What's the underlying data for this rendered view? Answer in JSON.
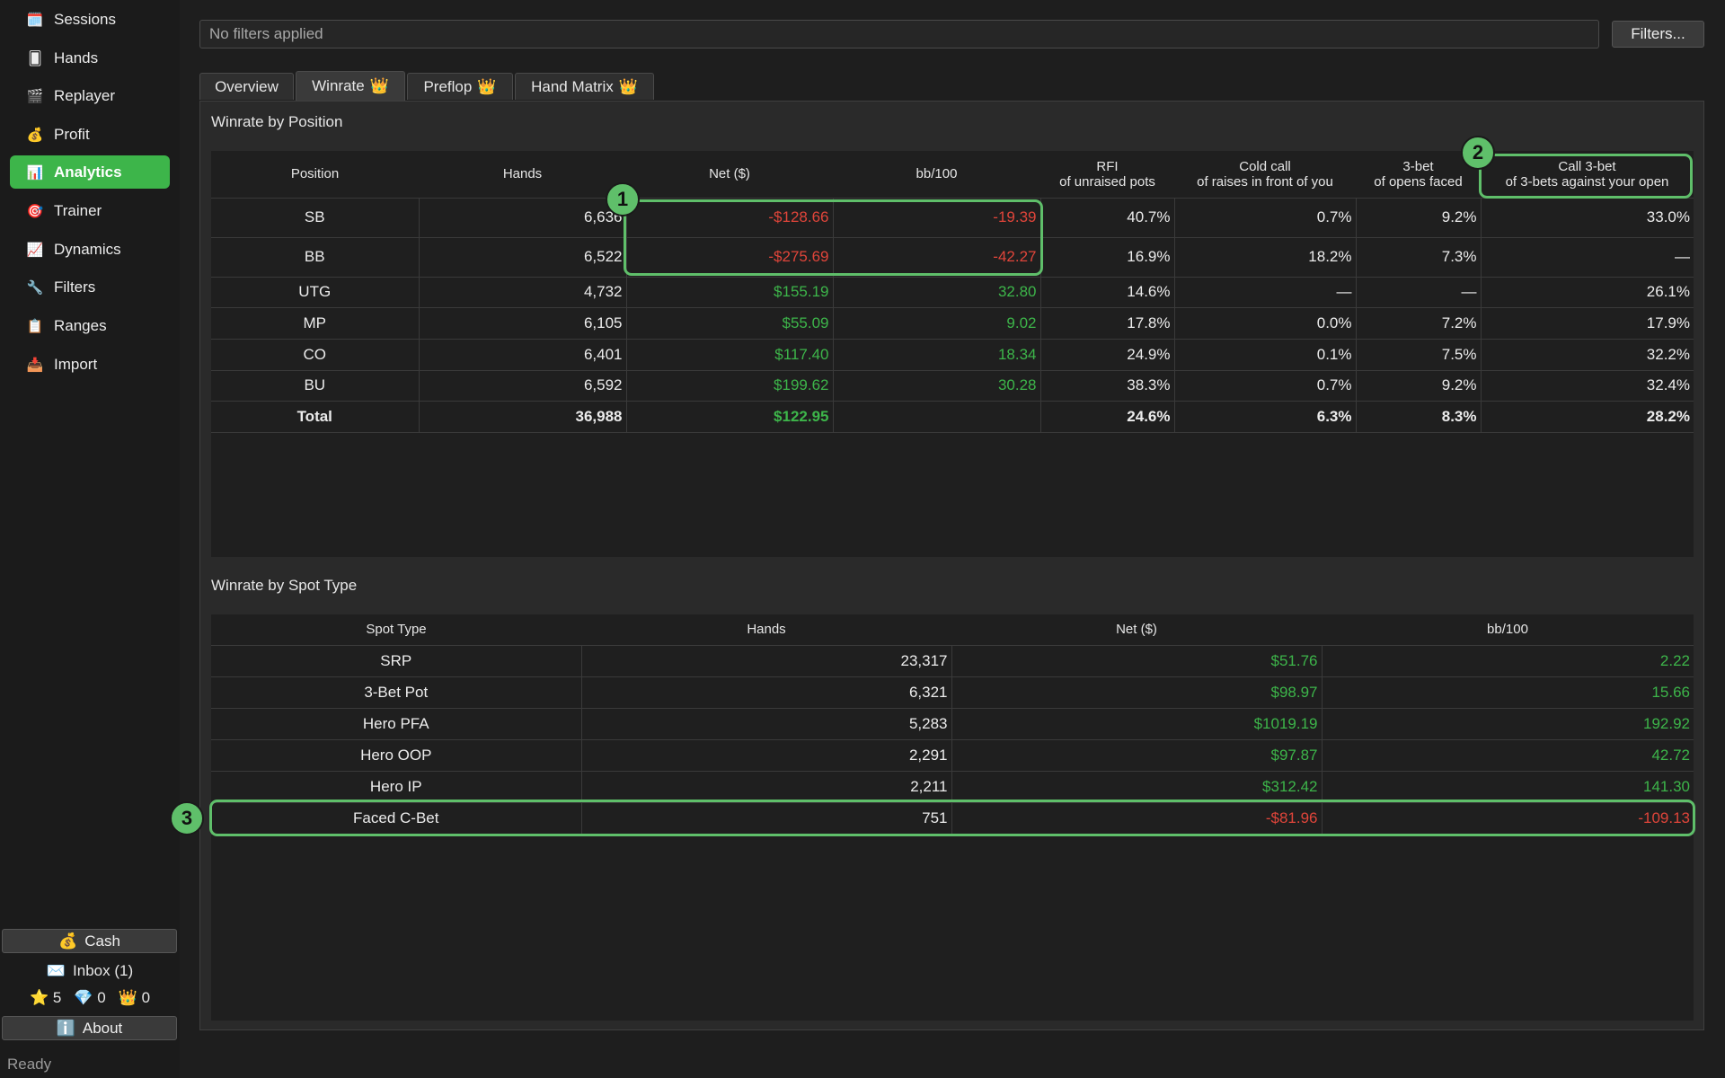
{
  "sidebar": {
    "items": [
      {
        "label": "Sessions",
        "icon": "🗓️",
        "active": false
      },
      {
        "label": "Hands",
        "icon": "🂠",
        "active": false
      },
      {
        "label": "Replayer",
        "icon": "🎬",
        "active": false
      },
      {
        "label": "Profit",
        "icon": "💰",
        "active": false
      },
      {
        "label": "Analytics",
        "icon": "📊",
        "active": true
      },
      {
        "label": "Trainer",
        "icon": "🎯",
        "active": false
      },
      {
        "label": "Dynamics",
        "icon": "📈",
        "active": false
      },
      {
        "label": "Filters",
        "icon": "🔧",
        "active": false
      },
      {
        "label": "Ranges",
        "icon": "📋",
        "active": false
      },
      {
        "label": "Import",
        "icon": "📥",
        "active": false
      }
    ],
    "cash_button": {
      "label": "Cash",
      "icon": "💰"
    },
    "inbox": {
      "label": "Inbox  (1)",
      "icon": "✉️"
    },
    "counters": [
      {
        "icon": "⭐",
        "value": "5"
      },
      {
        "icon": "💎",
        "value": "0"
      },
      {
        "icon": "👑",
        "value": "0"
      }
    ],
    "about_button": {
      "label": "About",
      "icon": "ℹ️"
    }
  },
  "status_bar": {
    "text": "Ready"
  },
  "filter_bar": {
    "text": "No filters applied",
    "button_label": "Filters..."
  },
  "tabs": [
    {
      "label": "Overview",
      "crown": "",
      "active": false
    },
    {
      "label": "Winrate",
      "crown": "👑",
      "active": true
    },
    {
      "label": "Preflop",
      "crown": "👑",
      "active": false
    },
    {
      "label": "Hand Matrix",
      "crown": "👑",
      "active": false
    }
  ],
  "winrate_by_position": {
    "title": "Winrate by Position",
    "headers": [
      {
        "line1": "Position",
        "line2": ""
      },
      {
        "line1": "Hands",
        "line2": ""
      },
      {
        "line1": "Net ($)",
        "line2": ""
      },
      {
        "line1": "bb/100",
        "line2": ""
      },
      {
        "line1": "RFI",
        "line2": "of unraised pots"
      },
      {
        "line1": "Cold call",
        "line2": "of raises in front of you"
      },
      {
        "line1": "3-bet",
        "line2": "of opens faced"
      },
      {
        "line1": "Call 3-bet",
        "line2": "of 3-bets against your open"
      }
    ],
    "rows": [
      {
        "position": "SB",
        "hands": "6,636",
        "net": "-$128.66",
        "bb100": "-19.39",
        "rfi": "40.7%",
        "cold_call": "0.7%",
        "three_bet": "9.2%",
        "call_3bet": "33.0%"
      },
      {
        "position": "BB",
        "hands": "6,522",
        "net": "-$275.69",
        "bb100": "-42.27",
        "rfi": "16.9%",
        "cold_call": "18.2%",
        "three_bet": "7.3%",
        "call_3bet": "—"
      },
      {
        "position": "UTG",
        "hands": "4,732",
        "net": "$155.19",
        "bb100": "32.80",
        "rfi": "14.6%",
        "cold_call": "—",
        "three_bet": "—",
        "call_3bet": "26.1%"
      },
      {
        "position": "MP",
        "hands": "6,105",
        "net": "$55.09",
        "bb100": "9.02",
        "rfi": "17.8%",
        "cold_call": "0.0%",
        "three_bet": "7.2%",
        "call_3bet": "17.9%"
      },
      {
        "position": "CO",
        "hands": "6,401",
        "net": "$117.40",
        "bb100": "18.34",
        "rfi": "24.9%",
        "cold_call": "0.1%",
        "three_bet": "7.5%",
        "call_3bet": "32.2%"
      },
      {
        "position": "BU",
        "hands": "6,592",
        "net": "$199.62",
        "bb100": "30.28",
        "rfi": "38.3%",
        "cold_call": "0.7%",
        "three_bet": "9.2%",
        "call_3bet": "32.4%"
      },
      {
        "position": "Total",
        "hands": "36,988",
        "net": "$122.95",
        "bb100": "",
        "rfi": "24.6%",
        "cold_call": "6.3%",
        "three_bet": "8.3%",
        "call_3bet": "28.2%"
      }
    ]
  },
  "winrate_by_spot": {
    "title": "Winrate by Spot Type",
    "headers": [
      "Spot Type",
      "Hands",
      "Net ($)",
      "bb/100"
    ],
    "rows": [
      {
        "spot": "SRP",
        "hands": "23,317",
        "net": "$51.76",
        "bb100": "2.22"
      },
      {
        "spot": "3-Bet Pot",
        "hands": "6,321",
        "net": "$98.97",
        "bb100": "15.66"
      },
      {
        "spot": "Hero PFA",
        "hands": "5,283",
        "net": "$1019.19",
        "bb100": "192.92"
      },
      {
        "spot": "Hero OOP",
        "hands": "2,291",
        "net": "$97.87",
        "bb100": "42.72"
      },
      {
        "spot": "Hero IP",
        "hands": "2,211",
        "net": "$312.42",
        "bb100": "141.30"
      },
      {
        "spot": "Faced C-Bet",
        "hands": "751",
        "net": "-$81.96",
        "bb100": "-109.13"
      }
    ]
  },
  "callouts": [
    {
      "number": "1"
    },
    {
      "number": "2"
    },
    {
      "number": "3"
    }
  ],
  "colors": {
    "accent": "#3db54a",
    "negative": "#e0453a",
    "callout": "#5fbf6a"
  }
}
